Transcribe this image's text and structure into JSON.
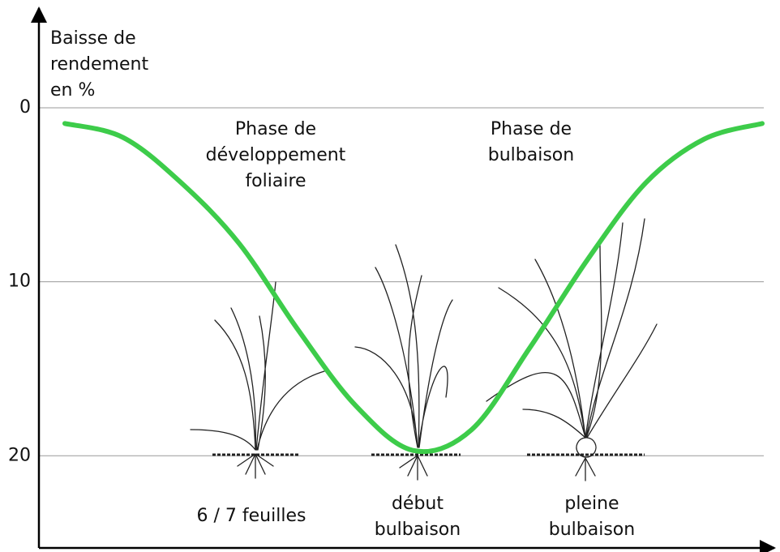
{
  "chart_data": {
    "type": "line",
    "y_label": [
      "Baisse de",
      "rendement",
      "en %"
    ],
    "annotations": [
      {
        "lines": [
          "Phase de",
          "développement",
          "foliaire"
        ]
      },
      {
        "lines": [
          "Phase de",
          "bulbaison"
        ]
      }
    ],
    "stages": [
      [
        "6 / 7 feuilles"
      ],
      [
        "début",
        "bulbaison"
      ],
      [
        "pleine",
        "bulbaison"
      ]
    ],
    "categories": [
      null,
      null,
      null,
      null,
      null,
      null,
      null,
      null,
      null,
      null,
      null,
      null,
      null
    ],
    "series": [
      {
        "color": "#3dcc4a",
        "values": [
          0.9,
          1.7,
          4.3,
          7.8,
          12.7,
          17.1,
          19.7,
          18.5,
          13.8,
          8.7,
          4.3,
          1.8,
          0.9
        ]
      }
    ],
    "ylim": [
      25.3,
      -5.5
    ],
    "yticks": [
      0,
      10,
      20
    ],
    "grid": true
  }
}
